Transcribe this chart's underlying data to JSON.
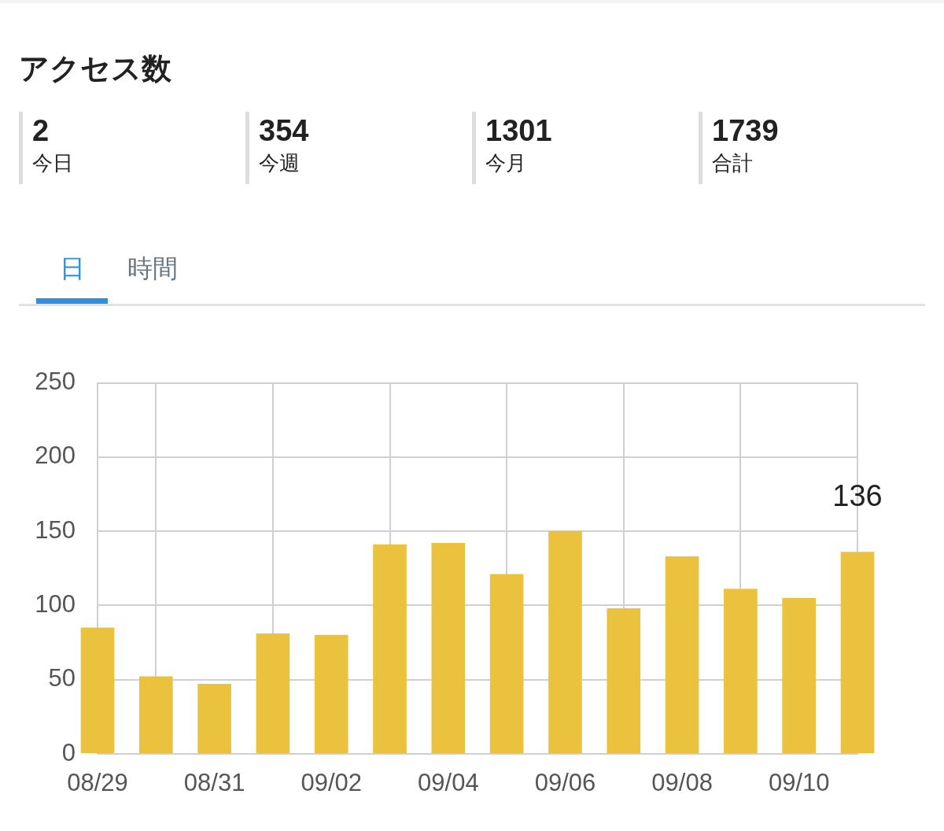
{
  "chart_data": [
    {
      "type": "other",
      "title": "アクセス数",
      "annotations": [
        "2",
        "今日",
        "354",
        "今週",
        "1301",
        "今月",
        "1739",
        "合計"
      ]
    },
    {
      "type": "bar",
      "annotations": [
        "日",
        "時間"
      ],
      "x": [
        "--08-29",
        "--08-30",
        "--08-31",
        "--09-01",
        "--09-02",
        "--09-03",
        "--09-04",
        "--09-05",
        "--09-06",
        "--09-07",
        "--09-08",
        "--09-09",
        "--09-10",
        "--09-11"
      ],
      "values": [
        85,
        52,
        47,
        81,
        80,
        141,
        142,
        121,
        150,
        98,
        133,
        111,
        105,
        136
      ],
      "value_labels": [
        null,
        null,
        null,
        null,
        null,
        null,
        null,
        null,
        null,
        null,
        null,
        null,
        null,
        "136"
      ],
      "color": "#ebc23e",
      "xlim": [
        "--08-29",
        "--09-11"
      ],
      "xticks": [
        {
          "value": "--08-29",
          "label": "08/29"
        },
        {
          "value": "--08-31",
          "label": "08/31"
        },
        {
          "value": "--09-02",
          "label": "09/02"
        },
        {
          "value": "--09-04",
          "label": "09/04"
        },
        {
          "value": "--09-06",
          "label": "09/06"
        },
        {
          "value": "--09-08",
          "label": "09/08"
        },
        {
          "value": "--09-10",
          "label": "09/10"
        }
      ],
      "ylim": [
        0,
        250
      ],
      "yticks": [
        0,
        50,
        100,
        150,
        200,
        250
      ],
      "grid": true,
      "legend": false
    }
  ]
}
